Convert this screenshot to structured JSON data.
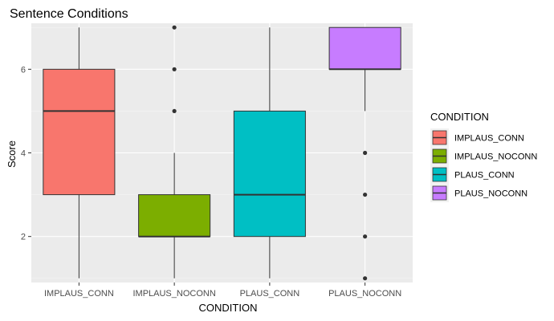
{
  "chart_data": {
    "type": "box",
    "title": "Sentence Conditions",
    "xlabel": "CONDITION",
    "ylabel": "Score",
    "ylim": [
      0.9,
      7.1
    ],
    "yticks": [
      2,
      4,
      6
    ],
    "grid": true,
    "legend": {
      "title": "CONDITION",
      "position": "right"
    },
    "categories": [
      "IMPLAUS_CONN",
      "IMPLAUS_NOCONN",
      "PLAUS_CONN",
      "PLAUS_NOCONN"
    ],
    "series": [
      {
        "name": "IMPLAUS_CONN",
        "color": "#F8766D",
        "whisker_low": 1,
        "q1": 3,
        "median": 5,
        "q3": 6,
        "whisker_high": 7,
        "outliers": []
      },
      {
        "name": "IMPLAUS_NOCONN",
        "color": "#7CAE00",
        "whisker_low": 1,
        "q1": 2,
        "median": 2,
        "q3": 3,
        "whisker_high": 4,
        "outliers": [
          6,
          5,
          7
        ]
      },
      {
        "name": "PLAUS_CONN",
        "color": "#00BFC4",
        "whisker_low": 1,
        "q1": 2,
        "median": 3,
        "q3": 5,
        "whisker_high": 7,
        "outliers": []
      },
      {
        "name": "PLAUS_NOCONN",
        "color": "#C77CFF",
        "whisker_low": 5,
        "q1": 6,
        "median": 6,
        "q3": 7,
        "whisker_high": 7,
        "outliers": [
          4,
          3,
          2,
          1
        ]
      }
    ]
  }
}
